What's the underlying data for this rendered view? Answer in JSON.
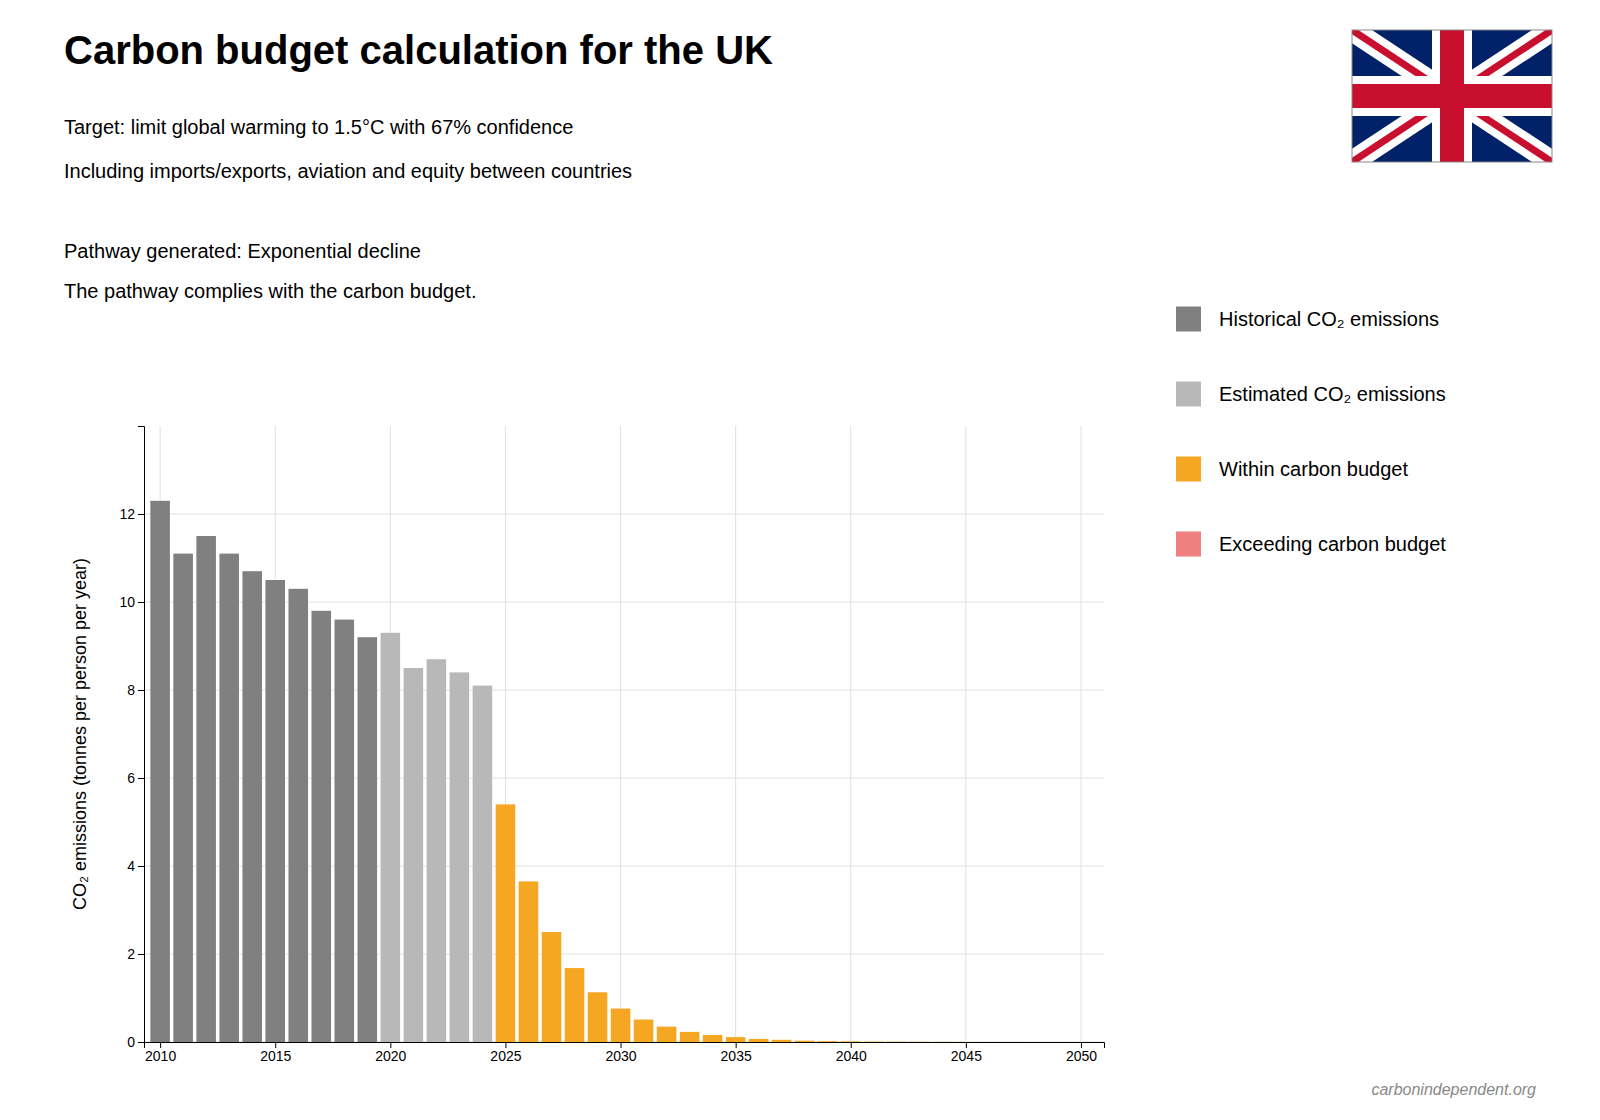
{
  "chart_data": {
    "type": "bar",
    "title": "Carbon budget calculation for the UK",
    "subtitle": [
      "Target: limit global warming to 1.5°C with 67% confidence",
      "Including imports/exports, aviation and equity between countries"
    ],
    "annotations": [
      "Pathway generated:  Exponential decline",
      "The pathway complies with the carbon budget.",
      "carbonindependent.org"
    ],
    "y_label": "CO₂ emissions (tonnes per person per year)",
    "series": [
      {
        "name": "Historical CO₂ emissions",
        "color": "#808080",
        "x": [
          2010,
          2011,
          2012,
          2013,
          2014,
          2015,
          2016,
          2017,
          2018,
          2019
        ],
        "values": [
          12.3,
          11.1,
          11.5,
          11.1,
          10.7,
          10.5,
          10.3,
          9.8,
          9.6,
          9.2
        ]
      },
      {
        "name": "Estimated CO₂ emissions",
        "color": "#b8b8b8",
        "x": [
          2020,
          2021,
          2022,
          2023,
          2024
        ],
        "values": [
          9.3,
          8.5,
          8.7,
          8.4,
          8.1
        ]
      },
      {
        "name": "Within carbon budget",
        "color": "#f5a623",
        "x": [
          2025,
          2026,
          2027,
          2028,
          2029,
          2030,
          2031,
          2032,
          2033,
          2034,
          2035,
          2036,
          2037,
          2038,
          2039,
          2040,
          2041,
          2042,
          2043,
          2044,
          2045,
          2046,
          2047,
          2048,
          2049,
          2050
        ],
        "values": [
          5.4,
          3.65,
          2.5,
          1.68,
          1.13,
          0.76,
          0.51,
          0.35,
          0.23,
          0.16,
          0.11,
          0.07,
          0.05,
          0.03,
          0.02,
          0.015,
          0.01,
          0.007,
          0.005,
          0.003,
          0.002,
          0.0015,
          0.001,
          0.0007,
          0.0005,
          0.0003
        ]
      },
      {
        "name": "Exceeding carbon budget",
        "color": "#f08080",
        "x": [],
        "values": []
      }
    ],
    "xlim": [
      2009.3,
      2051
    ],
    "xticks": [
      2010,
      2015,
      2020,
      2025,
      2030,
      2035,
      2040,
      2045,
      2050
    ],
    "ylim": [
      0,
      14
    ],
    "yticks": [
      0,
      2,
      4,
      6,
      8,
      10,
      12
    ],
    "grid": true,
    "legend": "right"
  }
}
